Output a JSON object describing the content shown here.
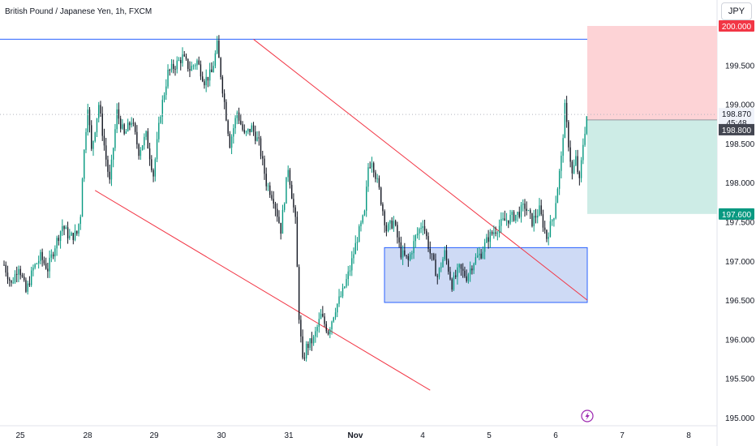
{
  "header": {
    "symbol_title": "British Pound / Japanese Yen, 1h, FXCM",
    "currency_button": "JPY"
  },
  "price_tags": {
    "tp_price": "200.000",
    "current_price": "198.870",
    "countdown": "45:48",
    "entry_price": "198.800",
    "sl_price": "197.600"
  },
  "colors": {
    "up": "#089981",
    "down": "#131722",
    "trendline": "#f23645",
    "hline": "#2962ff",
    "box_fill": "#c5d3f3",
    "box_stroke": "#2962ff",
    "profit_zone": "#fdd3d6",
    "loss_zone": "#cdece6",
    "tag_red": "#f23645",
    "tag_green": "#089981",
    "tag_dark": "#434651"
  },
  "icons": {
    "lightning": "lightning-icon"
  },
  "chart_data": {
    "type": "candlestick",
    "title": "British Pound / Japanese Yen, 1h, FXCM",
    "ylim": [
      194.95,
      200.25
    ],
    "y_ticks": [
      "195.000",
      "195.500",
      "196.000",
      "196.500",
      "197.000",
      "197.500",
      "198.000",
      "198.500",
      "199.000",
      "199.500"
    ],
    "x_ticks": [
      "25",
      "28",
      "29",
      "30",
      "31",
      "Nov",
      "4",
      "5",
      "6",
      "7",
      "8"
    ],
    "grid": false,
    "anchors": [
      [
        0,
        196.95
      ],
      [
        4,
        196.7
      ],
      [
        8,
        196.95
      ],
      [
        12,
        196.6
      ],
      [
        16,
        196.9
      ],
      [
        20,
        197.05
      ],
      [
        24,
        196.9
      ],
      [
        28,
        197.2
      ],
      [
        32,
        197.45
      ],
      [
        36,
        197.3
      ],
      [
        40,
        197.35
      ],
      [
        42,
        197.6
      ],
      [
        43,
        198.1
      ],
      [
        46,
        199.0
      ],
      [
        48,
        198.4
      ],
      [
        52,
        199.0
      ],
      [
        56,
        198.3
      ],
      [
        58,
        198.0
      ],
      [
        62,
        198.9
      ],
      [
        66,
        198.6
      ],
      [
        70,
        198.8
      ],
      [
        74,
        198.4
      ],
      [
        78,
        198.6
      ],
      [
        82,
        198.1
      ],
      [
        86,
        198.9
      ],
      [
        90,
        199.4
      ],
      [
        94,
        199.5
      ],
      [
        98,
        199.6
      ],
      [
        102,
        199.45
      ],
      [
        106,
        199.55
      ],
      [
        110,
        199.3
      ],
      [
        114,
        199.4
      ],
      [
        117,
        199.75
      ],
      [
        120,
        199.2
      ],
      [
        124,
        198.5
      ],
      [
        128,
        198.9
      ],
      [
        132,
        198.6
      ],
      [
        136,
        198.7
      ],
      [
        140,
        198.5
      ],
      [
        144,
        198.0
      ],
      [
        148,
        197.8
      ],
      [
        152,
        197.4
      ],
      [
        156,
        198.2
      ],
      [
        160,
        197.5
      ],
      [
        162,
        196.3
      ],
      [
        164,
        195.7
      ],
      [
        166,
        195.9
      ],
      [
        170,
        196.0
      ],
      [
        174,
        196.3
      ],
      [
        178,
        196.1
      ],
      [
        182,
        196.4
      ],
      [
        186,
        196.6
      ],
      [
        190,
        196.9
      ],
      [
        194,
        197.3
      ],
      [
        198,
        197.6
      ],
      [
        200,
        198.2
      ],
      [
        202,
        198.3
      ],
      [
        206,
        197.9
      ],
      [
        210,
        197.4
      ],
      [
        214,
        197.5
      ],
      [
        218,
        197.1
      ],
      [
        222,
        197.0
      ],
      [
        226,
        197.3
      ],
      [
        230,
        197.5
      ],
      [
        234,
        197.1
      ],
      [
        238,
        196.8
      ],
      [
        242,
        197.1
      ],
      [
        246,
        196.7
      ],
      [
        250,
        196.9
      ],
      [
        254,
        196.8
      ],
      [
        258,
        197.0
      ],
      [
        262,
        197.1
      ],
      [
        266,
        197.3
      ],
      [
        270,
        197.4
      ],
      [
        274,
        197.5
      ],
      [
        278,
        197.55
      ],
      [
        282,
        197.6
      ],
      [
        286,
        197.7
      ],
      [
        290,
        197.5
      ],
      [
        294,
        197.65
      ],
      [
        298,
        197.3
      ],
      [
        302,
        197.6
      ],
      [
        306,
        198.3
      ],
      [
        308,
        198.95
      ],
      [
        310,
        198.5
      ],
      [
        312,
        198.1
      ],
      [
        314,
        198.3
      ],
      [
        316,
        198.0
      ],
      [
        318,
        198.5
      ],
      [
        320,
        198.85
      ]
    ],
    "drawings": {
      "horizontal_line": 199.83,
      "trend_line_1": [
        [
          50,
          197.9
        ],
        [
          234,
          195.35
        ]
      ],
      "trend_line_2": [
        [
          137,
          199.83
        ],
        [
          302,
          196.5
        ]
      ],
      "demand_zone": {
        "y_top": 197.17,
        "y_bottom": 196.47
      },
      "position": {
        "take_profit": 200.0,
        "entry": 198.8,
        "stop_loss": 197.6
      }
    }
  }
}
